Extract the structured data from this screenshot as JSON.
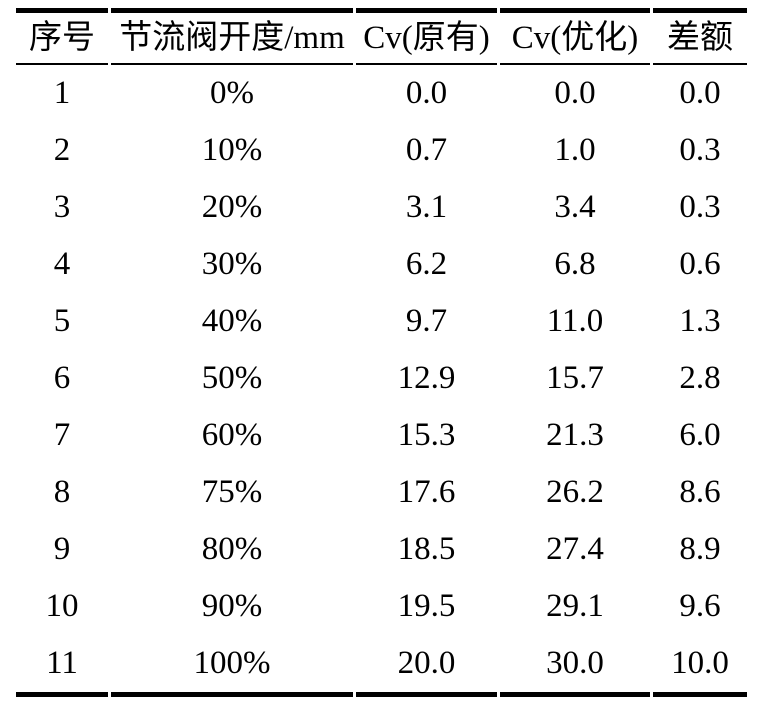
{
  "table": {
    "headers": [
      "序号",
      "节流阀开度/mm",
      "Cv(原有)",
      "Cv(优化)",
      "差额"
    ],
    "rows": [
      [
        "1",
        "0%",
        "0.0",
        "0.0",
        "0.0"
      ],
      [
        "2",
        "10%",
        "0.7",
        "1.0",
        "0.3"
      ],
      [
        "3",
        "20%",
        "3.1",
        "3.4",
        "0.3"
      ],
      [
        "4",
        "30%",
        "6.2",
        "6.8",
        "0.6"
      ],
      [
        "5",
        "40%",
        "9.7",
        "11.0",
        "1.3"
      ],
      [
        "6",
        "50%",
        "12.9",
        "15.7",
        "2.8"
      ],
      [
        "7",
        "60%",
        "15.3",
        "21.3",
        "6.0"
      ],
      [
        "8",
        "75%",
        "17.6",
        "26.2",
        "8.6"
      ],
      [
        "9",
        "80%",
        "18.5",
        "27.4",
        "8.9"
      ],
      [
        "10",
        "90%",
        "19.5",
        "29.1",
        "9.6"
      ],
      [
        "11",
        "100%",
        "20.0",
        "30.0",
        "10.0"
      ]
    ],
    "colors": {
      "text": "#000000",
      "rule": "#000000",
      "background": "#ffffff"
    }
  },
  "chart_data": {
    "type": "table",
    "title": "",
    "columns": [
      "序号",
      "节流阀开度/mm",
      "Cv(原有)",
      "Cv(优化)",
      "差额"
    ],
    "categories": [
      "0%",
      "10%",
      "20%",
      "30%",
      "40%",
      "50%",
      "60%",
      "75%",
      "80%",
      "90%",
      "100%"
    ],
    "series": [
      {
        "name": "Cv(原有)",
        "values": [
          0.0,
          0.7,
          3.1,
          6.2,
          9.7,
          12.9,
          15.3,
          17.6,
          18.5,
          19.5,
          20.0
        ]
      },
      {
        "name": "Cv(优化)",
        "values": [
          0.0,
          1.0,
          3.4,
          6.8,
          11.0,
          15.7,
          21.3,
          26.2,
          27.4,
          29.1,
          30.0
        ]
      },
      {
        "name": "差额",
        "values": [
          0.0,
          0.3,
          0.3,
          0.6,
          1.3,
          2.8,
          6.0,
          8.6,
          8.9,
          9.6,
          10.0
        ]
      }
    ]
  }
}
